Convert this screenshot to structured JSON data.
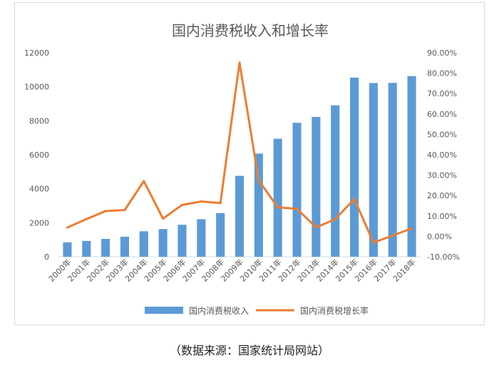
{
  "chart_data": {
    "type": "bar+line",
    "title": "国内消费税收入和增长率",
    "categories": [
      "2000年",
      "2001年",
      "2002年",
      "2003年",
      "2004年",
      "2005年",
      "2006年",
      "2007年",
      "2008年",
      "2009年",
      "2010年",
      "2011年",
      "2012年",
      "2013年",
      "2014年",
      "2015年",
      "2016年",
      "2017年",
      "2018年"
    ],
    "series": [
      {
        "name": "国内消费税收入",
        "type": "bar",
        "axis": "left",
        "color": "#5b9bd5",
        "values": [
          850,
          930,
          1050,
          1180,
          1500,
          1630,
          1880,
          2210,
          2570,
          4760,
          6070,
          6940,
          7880,
          8230,
          8910,
          10540,
          10220,
          10230,
          10630
        ]
      },
      {
        "name": "国内消费税增长率",
        "type": "line",
        "axis": "right",
        "color": "#ed7d31",
        "values": [
          4.3,
          8.5,
          12.4,
          12.9,
          27.1,
          8.7,
          15.4,
          17.1,
          16.3,
          85.2,
          27.5,
          14.2,
          13.5,
          4.4,
          8.4,
          18.3,
          -3.1,
          0.4,
          3.9
        ]
      }
    ],
    "y_left": {
      "min": 0,
      "max": 12000,
      "ticks": [
        "0",
        "2000",
        "4000",
        "6000",
        "8000",
        "10000",
        "12000"
      ]
    },
    "y_right": {
      "min": -10,
      "max": 90,
      "ticks": [
        "-10.00%",
        "0.00%",
        "10.00%",
        "20.00%",
        "30.00%",
        "40.00%",
        "50.00%",
        "60.00%",
        "70.00%",
        "80.00%",
        "90.00%"
      ]
    },
    "grid": false,
    "legend_position": "bottom"
  },
  "source_note": "（数据来源：国家统计局网站）"
}
